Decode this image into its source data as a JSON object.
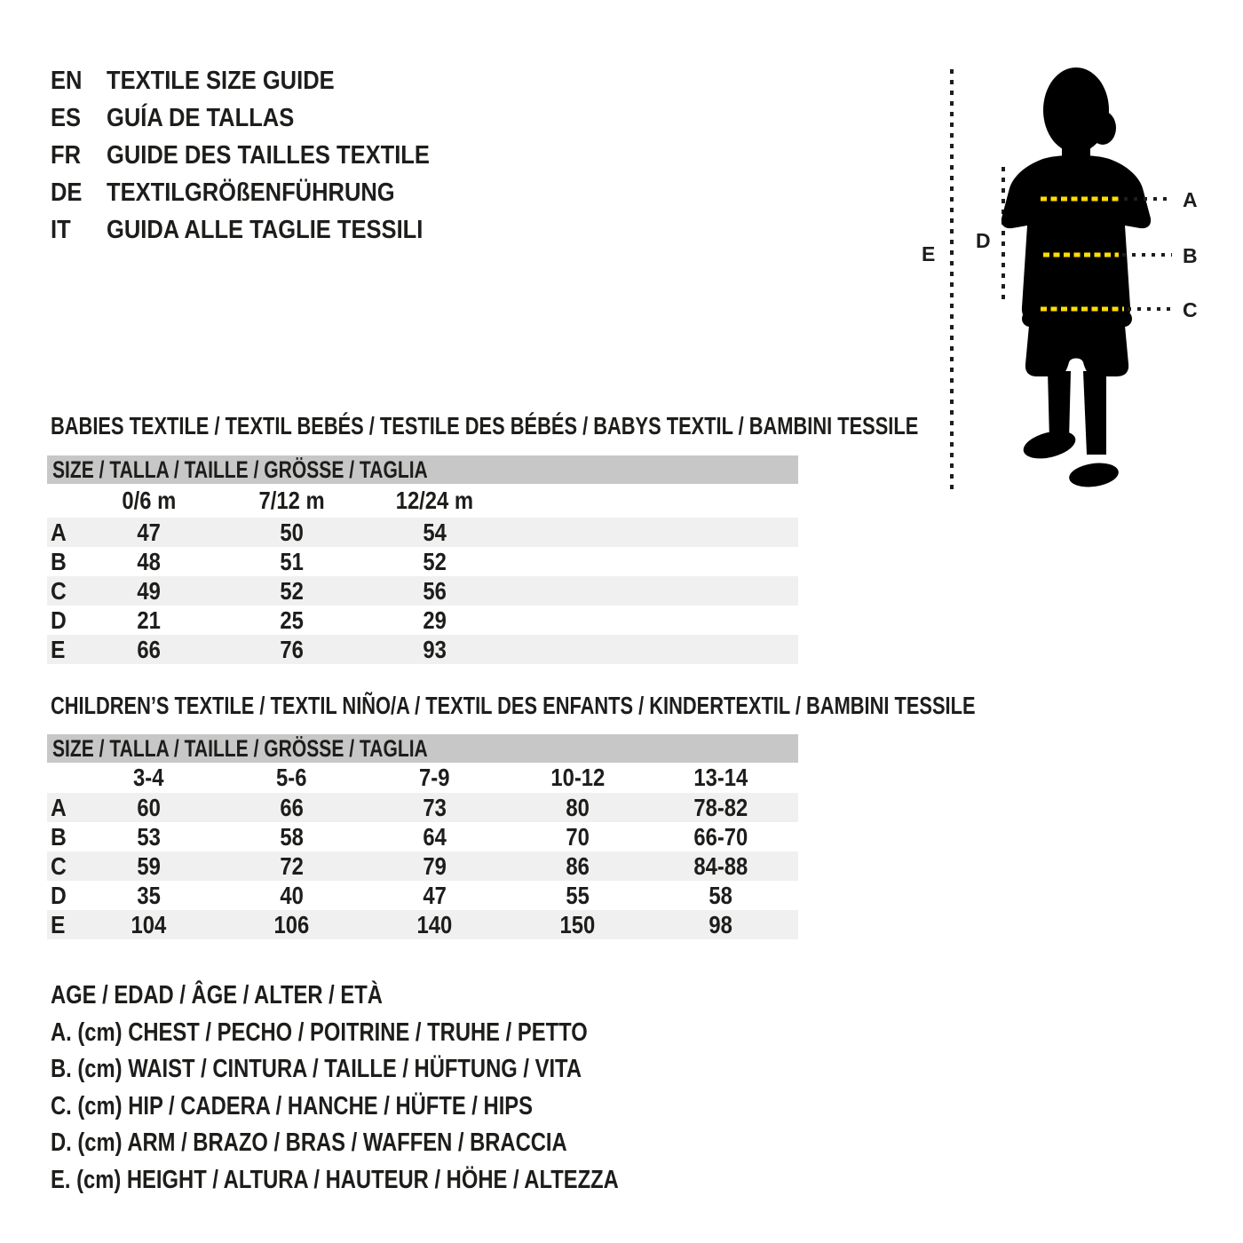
{
  "languages": [
    {
      "code": "EN",
      "title": "TEXTILE SIZE GUIDE"
    },
    {
      "code": "ES",
      "title": "GUÍA DE TALLAS"
    },
    {
      "code": "FR",
      "title": "GUIDE DES TAILLES TEXTILE"
    },
    {
      "code": "DE",
      "title": "TEXTILGRÖßENFÜHRUNG"
    },
    {
      "code": "IT",
      "title": "GUIDA ALLE TAGLIE TESSILI"
    }
  ],
  "figure": {
    "labels": {
      "a": "A",
      "b": "B",
      "c": "C",
      "d": "D",
      "e": "E"
    },
    "dot_color": "#ffdd00"
  },
  "babies_table": {
    "heading": "BABIES TEXTILE / TEXTIL BEBÉS / TESTILE DES BÉBÉS / BABYS TEXTIL / BAMBINI TESSILE",
    "size_header": "SIZE / TALLA / TAILLE / GRÖSSE / TAGLIA",
    "columns": [
      "0/6 m",
      "7/12 m",
      "12/24 m"
    ],
    "rows": [
      {
        "label": "A",
        "values": [
          "47",
          "50",
          "54"
        ]
      },
      {
        "label": "B",
        "values": [
          "48",
          "51",
          "52"
        ]
      },
      {
        "label": "C",
        "values": [
          "49",
          "52",
          "56"
        ]
      },
      {
        "label": "D",
        "values": [
          "21",
          "25",
          "29"
        ]
      },
      {
        "label": "E",
        "values": [
          "66",
          "76",
          "93"
        ]
      }
    ]
  },
  "children_table": {
    "heading": "CHILDREN’S TEXTILE / TEXTIL NIÑO/A / TEXTIL DES ENFANTS / KINDERTEXTIL / BAMBINI TESSILE",
    "size_header": "SIZE / TALLA / TAILLE / GRÖSSE / TAGLIA",
    "columns": [
      "3-4",
      "5-6",
      "7-9",
      "10-12",
      "13-14"
    ],
    "rows": [
      {
        "label": "A",
        "values": [
          "60",
          "66",
          "73",
          "80",
          "78-82"
        ]
      },
      {
        "label": "B",
        "values": [
          "53",
          "58",
          "64",
          "70",
          "66-70"
        ]
      },
      {
        "label": "C",
        "values": [
          "59",
          "72",
          "79",
          "86",
          "84-88"
        ]
      },
      {
        "label": "D",
        "values": [
          "35",
          "40",
          "47",
          "55",
          "58"
        ]
      },
      {
        "label": "E",
        "values": [
          "104",
          "106",
          "140",
          "150",
          "98"
        ]
      }
    ]
  },
  "legend": {
    "age_line": "AGE / EDAD / ÂGE / ALTER / ETÀ",
    "items": [
      "A. (cm) CHEST / PECHO / POITRINE / TRUHE / PETTO",
      "B. (cm) WAIST / CINTURA / TAILLE / HÜFTUNG / VITA",
      "C. (cm) HIP / CADERA / HANCHE / HÜFTE / HIPS",
      "D. (cm) ARM / BRAZO / BRAS / WAFFEN / BRACCIA",
      "E. (cm) HEIGHT / ALTURA / HAUTEUR / HÖHE / ALTEZZA"
    ]
  },
  "colors": {
    "text": "#1d1d1b",
    "header_bar": "#c7c7c7",
    "row_stripe": "#f0f0f0",
    "accent_yellow": "#ffdd00",
    "silhouette": "#000000"
  }
}
